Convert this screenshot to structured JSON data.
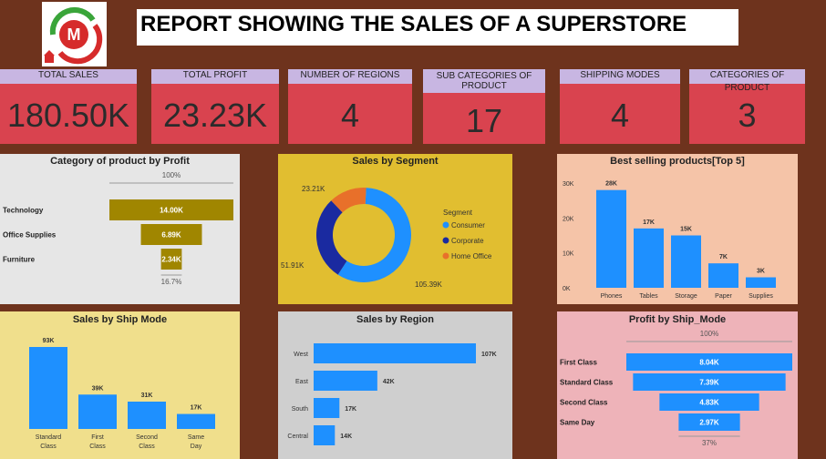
{
  "header": {
    "title": "REPORT SHOWING THE SALES OF A SUPERSTORE",
    "logo_icon": "shopping-cart-logo-icon",
    "logo_letter": "M"
  },
  "kpis": [
    {
      "label": "TOTAL SALES",
      "value": "180.50K"
    },
    {
      "label": "TOTAL PROFIT",
      "value": "23.23K"
    },
    {
      "label": "NUMBER OF REGIONS",
      "value": "4"
    },
    {
      "label": "SUB CATEGORIES OF PRODUCT",
      "value": "17"
    },
    {
      "label": "SHIPPING MODES",
      "value": "4"
    },
    {
      "label": "CATEGORIES OF PRODUCT",
      "value": "3"
    }
  ],
  "colors": {
    "background": "#6e331d",
    "kpi_card": "#d9434f",
    "kpi_label": "#c8b6e2",
    "olive": "#a08600",
    "blue": "#1e90ff",
    "navy": "#1a2aa0",
    "orange": "#e8702a"
  },
  "chart_data": [
    {
      "type": "funnel",
      "title": "Category of product by Profit",
      "categories": [
        "Technology",
        "Office Supplies",
        "Furniture"
      ],
      "values": [
        14.0,
        6.89,
        2.34
      ],
      "value_labels": [
        "14.00K",
        "6.89K",
        "2.34K"
      ],
      "top_label": "100%",
      "bottom_label": "16.7%"
    },
    {
      "type": "pie",
      "title": "Sales by Segment",
      "legend_title": "Segment",
      "categories": [
        "Consumer",
        "Corporate",
        "Home Office"
      ],
      "values": [
        105.39,
        51.91,
        23.21
      ],
      "value_labels": [
        "105.39K",
        "51.91K",
        "23.21K"
      ],
      "colors": [
        "#1e90ff",
        "#1a2aa0",
        "#e8702a"
      ]
    },
    {
      "type": "bar",
      "title": "Best selling products[Top 5]",
      "categories": [
        "Phones",
        "Tables",
        "Storage",
        "Paper",
        "Supplies"
      ],
      "values": [
        28,
        17,
        15,
        7,
        3
      ],
      "value_labels": [
        "28K",
        "17K",
        "15K",
        "7K",
        "3K"
      ],
      "yticks": [
        "0K",
        "10K",
        "20K",
        "30K"
      ],
      "ylim": [
        0,
        30
      ]
    },
    {
      "type": "bar",
      "title": "Sales by Ship Mode",
      "categories": [
        "Standard Class",
        "First Class",
        "Second Class",
        "Same Day"
      ],
      "values": [
        93,
        39,
        31,
        17
      ],
      "value_labels": [
        "93K",
        "39K",
        "31K",
        "17K"
      ]
    },
    {
      "type": "bar",
      "title": "Sales by Region",
      "orientation": "horizontal",
      "categories": [
        "West",
        "East",
        "South",
        "Central"
      ],
      "values": [
        107,
        42,
        17,
        14
      ],
      "value_labels": [
        "107K",
        "42K",
        "17K",
        "14K"
      ]
    },
    {
      "type": "funnel",
      "title": "Profit by Ship_Mode",
      "categories": [
        "First Class",
        "Standard Class",
        "Second Class",
        "Same Day"
      ],
      "values": [
        8.04,
        7.39,
        4.83,
        2.97
      ],
      "value_labels": [
        "8.04K",
        "7.39K",
        "4.83K",
        "2.97K"
      ],
      "top_label": "100%",
      "bottom_label": "37%"
    }
  ]
}
